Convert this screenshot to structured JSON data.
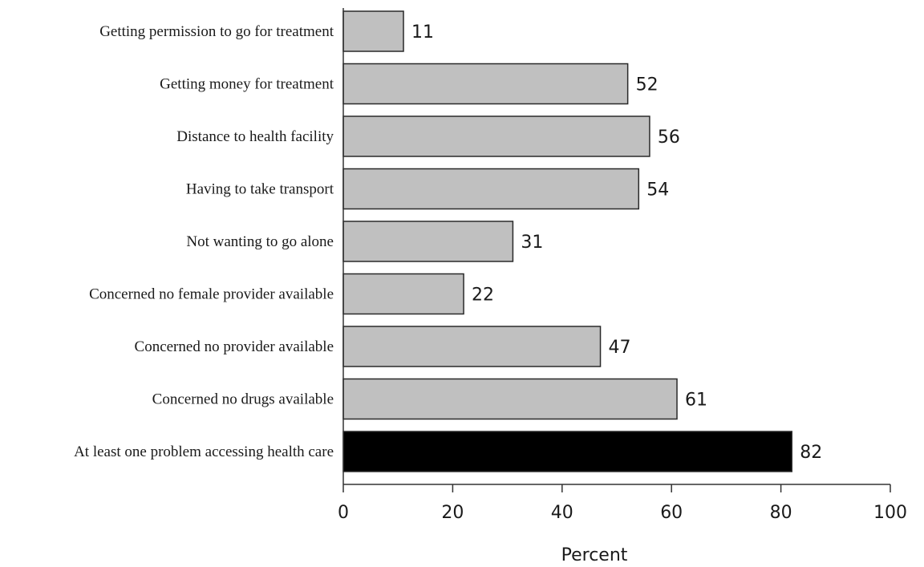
{
  "chart_data": {
    "type": "bar",
    "orientation": "horizontal",
    "categories": [
      "Getting permission to go for treatment",
      "Getting money for treatment",
      "Distance to health facility",
      "Having to take transport",
      "Not wanting to go alone",
      "Concerned no female provider available",
      "Concerned no provider available",
      "Concerned no drugs available",
      "At least one problem accessing health care"
    ],
    "values": [
      11,
      52,
      56,
      54,
      31,
      22,
      47,
      61,
      82
    ],
    "value_labels": [
      "11",
      "52",
      "56",
      "54",
      "31",
      "22",
      "47",
      "61",
      "82"
    ],
    "bar_colors": [
      "#c0c0c0",
      "#c0c0c0",
      "#c0c0c0",
      "#c0c0c0",
      "#c0c0c0",
      "#c0c0c0",
      "#c0c0c0",
      "#c0c0c0",
      "#000000"
    ],
    "xlabel": "Percent",
    "xlim": [
      0,
      100
    ],
    "xticks": [
      0,
      20,
      40,
      60,
      80,
      100
    ],
    "xtick_labels": [
      "0",
      "20",
      "40",
      "60",
      "80",
      "100"
    ],
    "grid": false,
    "legend": "none"
  }
}
